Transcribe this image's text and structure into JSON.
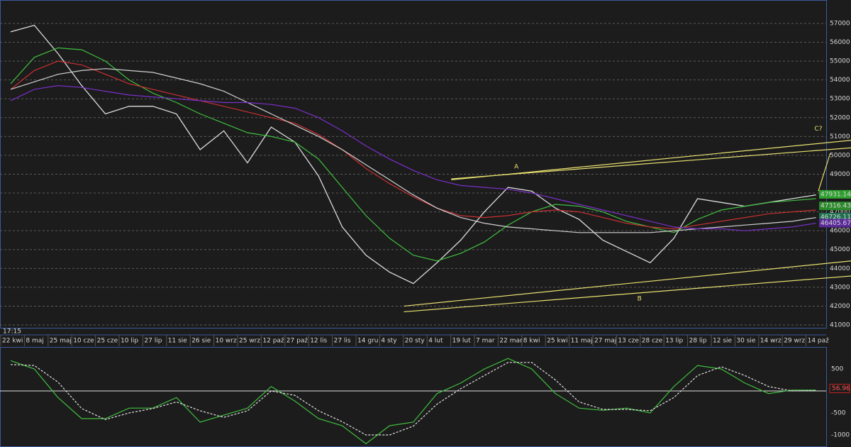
{
  "chart_data": [
    {
      "type": "line",
      "time_label": "17:15",
      "categories": [
        "22 kwi",
        "8 maj",
        "25 maj",
        "10 cze",
        "25 cze",
        "10 lip",
        "27 lip",
        "11 sie",
        "26 sie",
        "10 wrz",
        "25 wrz",
        "12 paź",
        "27 paź",
        "12 lis",
        "27 lis",
        "14 gru",
        "4 sty",
        "20 sty",
        "4 lut",
        "19 lut",
        "7 mar",
        "22 mar",
        "8 kwi",
        "25 kwi",
        "11 maj",
        "27 maj",
        "13 cze",
        "28 cze",
        "13 lip",
        "28 lip",
        "12 sie",
        "30 sie",
        "14 wrz",
        "29 wrz",
        "14 paź"
      ],
      "series": [
        {
          "name": "price",
          "color": "#dcdcdc",
          "values": [
            56550,
            56900,
            55400,
            53700,
            52200,
            52600,
            52600,
            52200,
            50300,
            51300,
            49600,
            51500,
            50700,
            48900,
            46200,
            44700,
            43800,
            43200,
            44300,
            45500,
            47000,
            48300,
            48100,
            47200,
            46600,
            45500,
            44900,
            44300,
            45600,
            47700,
            47500,
            47300,
            47500,
            47700,
            47900
          ]
        },
        {
          "name": "ma-fast",
          "color": "#3fbf3f",
          "values": [
            53800,
            55200,
            55700,
            55600,
            55000,
            54000,
            53300,
            52800,
            52200,
            51700,
            51200,
            51000,
            50700,
            49800,
            48300,
            46800,
            45600,
            44700,
            44400,
            44800,
            45400,
            46300,
            47000,
            47400,
            47300,
            47000,
            46500,
            46200,
            45900,
            46600,
            47100,
            47300,
            47500,
            47600,
            47700
          ]
        },
        {
          "name": "ma-red",
          "color": "#c83030",
          "values": [
            53500,
            54500,
            55000,
            54800,
            54300,
            53800,
            53500,
            53200,
            52900,
            52600,
            52300,
            52000,
            51700,
            51100,
            50300,
            49300,
            48500,
            47800,
            47200,
            46800,
            46700,
            46800,
            47000,
            47100,
            47000,
            46700,
            46400,
            46200,
            46100,
            46300,
            46500,
            46700,
            46900,
            47000,
            47100
          ]
        },
        {
          "name": "ma-white",
          "color": "#d0d0d0",
          "values": [
            53500,
            53900,
            54300,
            54500,
            54600,
            54500,
            54400,
            54100,
            53800,
            53400,
            52800,
            52200,
            51600,
            51000,
            50300,
            49500,
            48700,
            47900,
            47200,
            46700,
            46400,
            46200,
            46100,
            46000,
            45900,
            45900,
            45900,
            45900,
            46000,
            46100,
            46200,
            46300,
            46400,
            46500,
            46700
          ]
        },
        {
          "name": "ma-purple",
          "color": "#7a2fc8",
          "values": [
            52900,
            53500,
            53700,
            53600,
            53400,
            53200,
            53100,
            53000,
            52900,
            52800,
            52800,
            52700,
            52500,
            52000,
            51300,
            50500,
            49800,
            49200,
            48700,
            48400,
            48300,
            48200,
            48000,
            47700,
            47400,
            47100,
            46800,
            46500,
            46200,
            46100,
            46100,
            46000,
            46100,
            46200,
            46400
          ]
        }
      ],
      "price_boxes": [
        {
          "value": 47931.14,
          "color": "#2f9f2f"
        },
        {
          "value": 47316.43,
          "color": "#2a8a2a"
        },
        {
          "value": 46726.11,
          "color": "#1f6f4f"
        },
        {
          "value": 46405.67,
          "color": "#5a2a9a"
        }
      ],
      "trendlines": [
        {
          "color": "#e8e070",
          "from": [
            18.6,
            48700
          ],
          "to": [
            35.5,
            50800
          ]
        },
        {
          "color": "#e8e070",
          "from": [
            18.6,
            48750
          ],
          "to": [
            35.5,
            50400
          ]
        },
        {
          "color": "#e8e070",
          "from": [
            16.6,
            42000
          ],
          "to": [
            35.5,
            44400
          ]
        },
        {
          "color": "#e8e070",
          "from": [
            16.6,
            41700
          ],
          "to": [
            35.5,
            43600
          ]
        },
        {
          "color": "#e8e070",
          "from": [
            34.1,
            48100
          ],
          "to": [
            34.6,
            50100
          ]
        }
      ],
      "annotations": [
        {
          "text": "A",
          "x": 21.35,
          "y": 49400
        },
        {
          "text": "B",
          "x": 26.55,
          "y": 42400
        },
        {
          "text": "C?",
          "x": 34.1,
          "y": 51400
        }
      ],
      "ylim": [
        40850,
        58240
      ],
      "yticks": [
        41000,
        42000,
        43000,
        44000,
        45000,
        46000,
        47000,
        48000,
        49000,
        50000,
        51000,
        52000,
        53000,
        54000,
        55000,
        56000,
        57000
      ],
      "grid": true
    },
    {
      "type": "line",
      "ylim": [
        -1275,
        985
      ],
      "yticks": [
        500,
        -500,
        -1000
      ],
      "baseline": 0,
      "series": [
        {
          "name": "oscillator",
          "color": "#3fbf3f",
          "values": [
            690,
            500,
            -150,
            -630,
            -630,
            -390,
            -390,
            -150,
            -710,
            -550,
            -390,
            100,
            -230,
            -630,
            -790,
            -1200,
            -790,
            -710,
            -60,
            180,
            500,
            740,
            500,
            -60,
            -390,
            -440,
            -390,
            -500,
            100,
            580,
            500,
            180,
            -60,
            20,
            20
          ]
        },
        {
          "name": "signal",
          "color": "#e0e0e0",
          "dashed": true,
          "values": [
            600,
            580,
            200,
            -400,
            -650,
            -500,
            -400,
            -250,
            -450,
            -600,
            -450,
            0,
            -100,
            -450,
            -700,
            -1000,
            -1000,
            -800,
            -300,
            50,
            350,
            650,
            650,
            250,
            -250,
            -420,
            -420,
            -450,
            -150,
            350,
            550,
            350,
            100,
            0,
            10
          ]
        }
      ],
      "last_value": 56.96,
      "last_value_color": "#c02020"
    }
  ]
}
